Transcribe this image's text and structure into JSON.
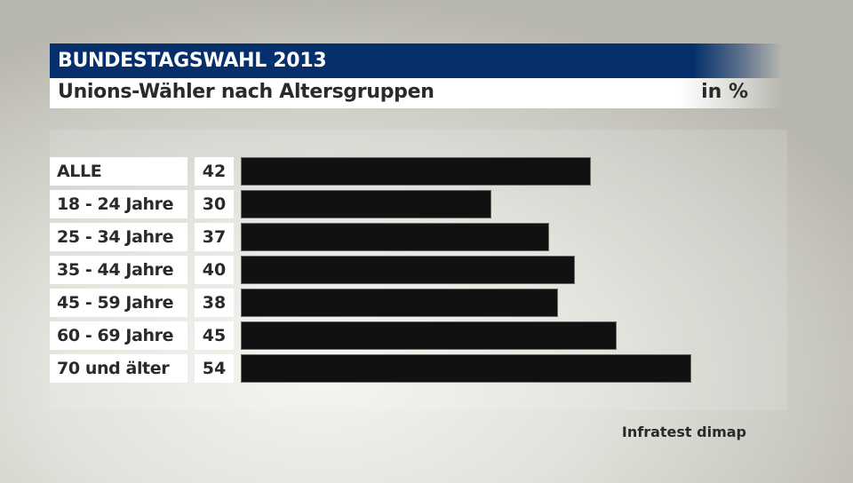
{
  "header": {
    "title": "BUNDESTAGSWAHL 2013",
    "subtitle": "Unions-Wähler nach Altersgruppen",
    "unit": "in %"
  },
  "source": "Infratest dimap",
  "colors": {
    "header_bg": "#06306b",
    "bar": "#111111",
    "text": "#2a2a2a"
  },
  "rows": [
    {
      "label": "ALLE",
      "value": "42"
    },
    {
      "label": "18 - 24 Jahre",
      "value": "30"
    },
    {
      "label": "25 - 34 Jahre",
      "value": "37"
    },
    {
      "label": "35 - 44 Jahre",
      "value": "40"
    },
    {
      "label": "45 - 59 Jahre",
      "value": "38"
    },
    {
      "label": "60 - 69 Jahre",
      "value": "45"
    },
    {
      "label": "70 und älter",
      "value": "54"
    }
  ],
  "chart_data": {
    "type": "bar",
    "orientation": "horizontal",
    "title": "BUNDESTAGSWAHL 2013",
    "subtitle": "Unions-Wähler nach Altersgruppen",
    "xlabel": "",
    "ylabel": "",
    "unit": "in %",
    "categories": [
      "ALLE",
      "18 - 24 Jahre",
      "25 - 34 Jahre",
      "35 - 44 Jahre",
      "45 - 59 Jahre",
      "60 - 69 Jahre",
      "70 und älter"
    ],
    "values": [
      42,
      30,
      37,
      40,
      38,
      45,
      54
    ],
    "xlim": [
      0,
      54
    ],
    "grid": false,
    "legend": null,
    "annotations": [
      "Infratest dimap"
    ]
  }
}
